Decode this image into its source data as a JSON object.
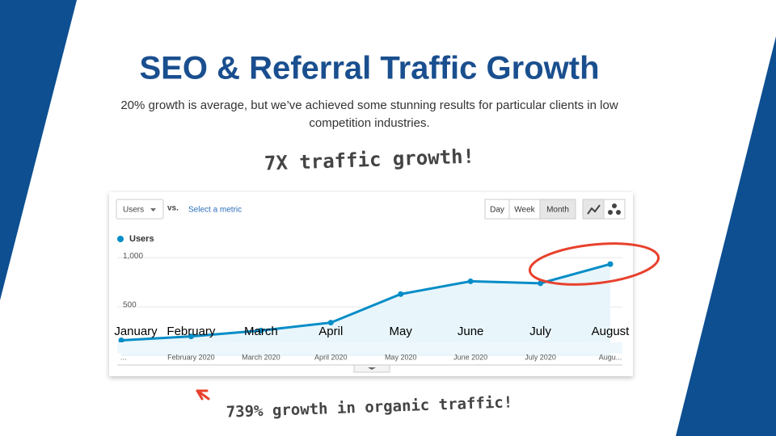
{
  "slide": {
    "title": "SEO & Referral Traffic Growth",
    "subtitle_line1": "20% growth is average, but we’ve achieved some stunning results for particular clients in low",
    "subtitle_line2": "competition industries.",
    "callout_top": "7X traffic growth!",
    "callout_bottom": "739% growth in organic traffic!"
  },
  "toolbar": {
    "metric": "Users",
    "vs": "vs.",
    "select_metric": "Select a metric",
    "buttons": [
      "Day",
      "Week",
      "Month"
    ]
  },
  "chart_data": {
    "type": "line",
    "categories": [
      "January",
      "February",
      "March",
      "April",
      "May",
      "June",
      "July",
      "August"
    ],
    "series": [
      {
        "name": "Users",
        "color": "#058dc7",
        "values": [
          160,
          200,
          260,
          340,
          630,
          760,
          740,
          935
        ]
      }
    ],
    "ylim": [
      0,
      1100
    ],
    "yticks": [
      500,
      {
        "value": 1000,
        "label": "1,000"
      }
    ],
    "grid": true
  },
  "timeline": {
    "labels": [
      "...",
      "February 2020",
      "March 2020",
      "April 2020",
      "May 2020",
      "June 2020",
      "July 2020",
      "Augu..."
    ]
  }
}
